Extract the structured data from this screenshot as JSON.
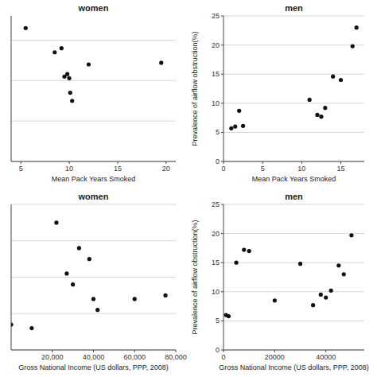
{
  "chart_data": [
    {
      "type": "scatter",
      "title": "women",
      "xlabel": "Mean Pack Years Smoked",
      "x": [
        5.5,
        8.5,
        9.2,
        9.5,
        9.8,
        10.0,
        10.1,
        10.3,
        12.0,
        19.5
      ],
      "values": [
        21.5,
        18.5,
        19.0,
        15.5,
        15.8,
        15.3,
        13.5,
        12.5,
        17.0,
        17.2
      ],
      "color": "#111111",
      "xlim": [
        4,
        21
      ],
      "ylim": [
        5,
        23
      ],
      "xticks": [
        5,
        10,
        15,
        20
      ],
      "yticks": [
        5,
        10,
        15,
        20
      ],
      "grid": true,
      "tick_labels": "x"
    },
    {
      "type": "scatter",
      "title": "men",
      "xlabel": "Mean Pack Years Smoked",
      "ylabel": "Prevalence of airflow obstruction(%)",
      "x": [
        1.0,
        1.5,
        2.0,
        2.5,
        11.0,
        12.0,
        12.5,
        13.0,
        14.0,
        15.0,
        16.5,
        17.0
      ],
      "values": [
        5.7,
        6.0,
        8.7,
        6.1,
        10.6,
        8.0,
        7.7,
        9.2,
        14.6,
        14.0,
        19.8,
        23.0
      ],
      "color": "#111111",
      "xlim": [
        0,
        18
      ],
      "ylim": [
        0,
        25
      ],
      "xticks": [
        0,
        5,
        10,
        15
      ],
      "yticks": [
        0,
        5,
        10,
        15,
        20,
        25
      ],
      "grid": true
    },
    {
      "type": "scatter",
      "title": "women",
      "xlabel": "Gross National Income (US dollars, PPP, 2008)",
      "x": [
        0,
        10000,
        22000,
        27000,
        30000,
        33000,
        38000,
        40000,
        42000,
        60000,
        75000
      ],
      "values": [
        8.5,
        8.0,
        22.5,
        15.5,
        14.0,
        19.0,
        17.5,
        12.0,
        10.5,
        12.0,
        12.5
      ],
      "color": "#111111",
      "xlim": [
        0,
        80000
      ],
      "ylim": [
        5,
        25
      ],
      "xticks": [
        {
          "value": 20000,
          "label": "20,000"
        },
        {
          "value": 40000,
          "label": "40,000"
        },
        {
          "value": 60000,
          "label": "60,000"
        },
        {
          "value": 80000,
          "label": "80,000"
        }
      ],
      "yticks": [
        5,
        10,
        15,
        20,
        25
      ],
      "grid": true,
      "tick_labels": "x"
    },
    {
      "type": "scatter",
      "title": "men",
      "xlabel": "Gross National Income (US dollars, PPP, 2008)",
      "ylabel": "Prevalence of airflow obstruction(%)",
      "x": [
        1000,
        2000,
        5000,
        8000,
        10000,
        20000,
        30000,
        35000,
        38000,
        40000,
        42000,
        45000,
        47000,
        50000
      ],
      "values": [
        6.0,
        5.8,
        15.0,
        17.2,
        17.0,
        8.5,
        14.8,
        7.7,
        9.5,
        9.0,
        10.2,
        14.5,
        13.0,
        19.7
      ],
      "color": "#111111",
      "xlim": [
        0,
        55000
      ],
      "ylim": [
        0,
        25
      ],
      "xticks": [
        0,
        20000,
        40000
      ],
      "yticks": [
        0,
        5,
        10,
        15,
        20,
        25
      ],
      "grid": true
    }
  ]
}
